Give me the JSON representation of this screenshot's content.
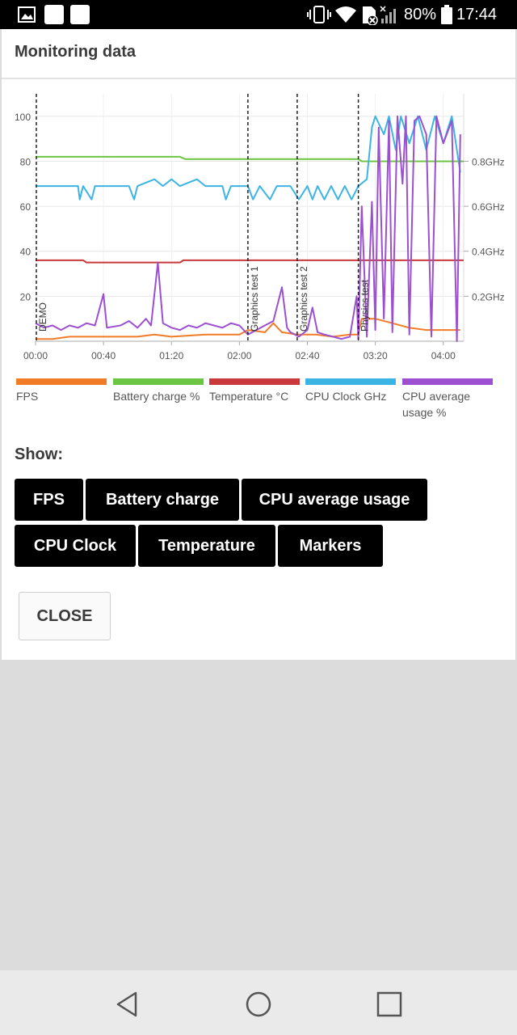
{
  "status_bar": {
    "battery_percent": "80%",
    "time": "17:44",
    "icons": [
      "image-icon",
      "app-icon",
      "app-icon",
      "vibrate-icon",
      "wifi-icon",
      "no-sim-icon",
      "signal-icon",
      "battery-icon"
    ]
  },
  "dialog": {
    "title": "Monitoring data",
    "show_label": "Show:",
    "close_label": "CLOSE"
  },
  "toggles": [
    {
      "label": "FPS"
    },
    {
      "label": "Battery charge"
    },
    {
      "label": "CPU average usage"
    },
    {
      "label": "CPU Clock"
    },
    {
      "label": "Temperature"
    },
    {
      "label": "Markers"
    }
  ],
  "legend": [
    {
      "label": "FPS",
      "color": "#f07c2a"
    },
    {
      "label": "Battery charge %",
      "color": "#6cc644"
    },
    {
      "label": "Temperature °C",
      "color": "#c9383a"
    },
    {
      "label": "CPU Clock GHz",
      "color": "#3cb4e4"
    },
    {
      "label": "CPU average usage %",
      "color": "#9c4fd0"
    }
  ],
  "chart_data": {
    "type": "line",
    "x_range_seconds": [
      0,
      252
    ],
    "y_left_ticks": [
      "100",
      "80",
      "60",
      "40",
      "20"
    ],
    "y_left_range": [
      0,
      110
    ],
    "y_right_ticks": [
      "0.8GHz",
      "0.6GHz",
      "0.4GHz",
      "0.2GHz"
    ],
    "y_right_range": [
      0,
      1.1
    ],
    "x_ticks": [
      {
        "label": "00:00",
        "t": 0
      },
      {
        "label": "00:40",
        "t": 40
      },
      {
        "label": "01:20",
        "t": 80
      },
      {
        "label": "02:00",
        "t": 120
      },
      {
        "label": "02:40",
        "t": 160
      },
      {
        "label": "03:20",
        "t": 200
      },
      {
        "label": "04:00",
        "t": 240
      }
    ],
    "markers": [
      {
        "label": "DEMO",
        "t": 0
      },
      {
        "label": "Graphics test 1",
        "t": 125
      },
      {
        "label": "Graphics test 2",
        "t": 154
      },
      {
        "label": "Physics test",
        "t": 190
      }
    ],
    "series": [
      {
        "name": "FPS",
        "color": "#f07c2a",
        "points": [
          [
            0,
            1
          ],
          [
            10,
            1
          ],
          [
            20,
            2
          ],
          [
            40,
            2
          ],
          [
            60,
            2
          ],
          [
            70,
            3
          ],
          [
            80,
            2
          ],
          [
            100,
            3
          ],
          [
            120,
            3
          ],
          [
            125,
            5
          ],
          [
            135,
            4
          ],
          [
            140,
            8
          ],
          [
            145,
            4
          ],
          [
            154,
            3
          ],
          [
            165,
            3
          ],
          [
            175,
            2
          ],
          [
            185,
            3
          ],
          [
            190,
            3
          ],
          [
            192,
            10
          ],
          [
            200,
            10
          ],
          [
            210,
            8
          ],
          [
            220,
            6
          ],
          [
            230,
            5
          ],
          [
            240,
            5
          ],
          [
            250,
            5
          ]
        ]
      },
      {
        "name": "Battery charge %",
        "color": "#6cc644",
        "points": [
          [
            0,
            82
          ],
          [
            85,
            82
          ],
          [
            88,
            81
          ],
          [
            190,
            81
          ],
          [
            192,
            80
          ],
          [
            252,
            80
          ]
        ]
      },
      {
        "name": "Temperature °C",
        "color": "#c9383a",
        "points": [
          [
            0,
            36
          ],
          [
            28,
            36
          ],
          [
            30,
            35
          ],
          [
            85,
            35
          ],
          [
            87,
            36
          ],
          [
            252,
            36
          ]
        ]
      },
      {
        "name": "CPU Clock GHz",
        "color": "#3cb4e4",
        "points": [
          [
            0,
            0.69
          ],
          [
            25,
            0.69
          ],
          [
            26,
            0.63
          ],
          [
            28,
            0.69
          ],
          [
            33,
            0.63
          ],
          [
            35,
            0.69
          ],
          [
            55,
            0.69
          ],
          [
            58,
            0.63
          ],
          [
            60,
            0.69
          ],
          [
            70,
            0.72
          ],
          [
            75,
            0.69
          ],
          [
            80,
            0.72
          ],
          [
            85,
            0.69
          ],
          [
            95,
            0.72
          ],
          [
            100,
            0.69
          ],
          [
            110,
            0.69
          ],
          [
            112,
            0.63
          ],
          [
            115,
            0.69
          ],
          [
            125,
            0.69
          ],
          [
            128,
            0.63
          ],
          [
            132,
            0.69
          ],
          [
            138,
            0.63
          ],
          [
            142,
            0.69
          ],
          [
            150,
            0.69
          ],
          [
            155,
            0.63
          ],
          [
            160,
            0.69
          ],
          [
            163,
            0.63
          ],
          [
            166,
            0.69
          ],
          [
            170,
            0.63
          ],
          [
            174,
            0.69
          ],
          [
            178,
            0.63
          ],
          [
            182,
            0.69
          ],
          [
            186,
            0.63
          ],
          [
            190,
            0.69
          ],
          [
            195,
            0.72
          ],
          [
            198,
            0.95
          ],
          [
            200,
            1.0
          ],
          [
            205,
            0.92
          ],
          [
            208,
            1.0
          ],
          [
            212,
            0.85
          ],
          [
            215,
            1.0
          ],
          [
            220,
            0.88
          ],
          [
            225,
            1.0
          ],
          [
            230,
            0.85
          ],
          [
            235,
            1.0
          ],
          [
            240,
            0.88
          ],
          [
            245,
            1.0
          ],
          [
            250,
            0.75
          ]
        ]
      },
      {
        "name": "CPU average usage %",
        "color": "#9c4fd0",
        "points": [
          [
            0,
            8
          ],
          [
            5,
            6
          ],
          [
            10,
            7
          ],
          [
            15,
            5
          ],
          [
            20,
            7
          ],
          [
            25,
            6
          ],
          [
            30,
            8
          ],
          [
            35,
            7
          ],
          [
            40,
            21
          ],
          [
            42,
            6
          ],
          [
            50,
            7
          ],
          [
            55,
            9
          ],
          [
            60,
            6
          ],
          [
            65,
            10
          ],
          [
            68,
            7
          ],
          [
            72,
            35
          ],
          [
            75,
            8
          ],
          [
            80,
            6
          ],
          [
            85,
            5
          ],
          [
            90,
            7
          ],
          [
            95,
            6
          ],
          [
            100,
            8
          ],
          [
            105,
            7
          ],
          [
            110,
            6
          ],
          [
            115,
            8
          ],
          [
            120,
            7
          ],
          [
            125,
            3
          ],
          [
            130,
            5
          ],
          [
            135,
            7
          ],
          [
            140,
            9
          ],
          [
            145,
            24
          ],
          [
            148,
            6
          ],
          [
            150,
            4
          ],
          [
            155,
            2
          ],
          [
            160,
            5
          ],
          [
            163,
            15
          ],
          [
            166,
            4
          ],
          [
            170,
            3
          ],
          [
            175,
            2
          ],
          [
            180,
            1
          ],
          [
            185,
            2
          ],
          [
            189,
            20
          ],
          [
            190,
            1
          ],
          [
            192,
            60
          ],
          [
            195,
            2
          ],
          [
            198,
            62
          ],
          [
            200,
            5
          ],
          [
            202,
            95
          ],
          [
            205,
            10
          ],
          [
            208,
            98
          ],
          [
            210,
            4
          ],
          [
            213,
            100
          ],
          [
            216,
            70
          ],
          [
            218,
            100
          ],
          [
            220,
            3
          ],
          [
            223,
            98
          ],
          [
            226,
            100
          ],
          [
            230,
            92
          ],
          [
            233,
            2
          ],
          [
            236,
            100
          ],
          [
            240,
            88
          ],
          [
            245,
            98
          ],
          [
            248,
            0
          ],
          [
            250,
            92
          ]
        ]
      }
    ]
  }
}
